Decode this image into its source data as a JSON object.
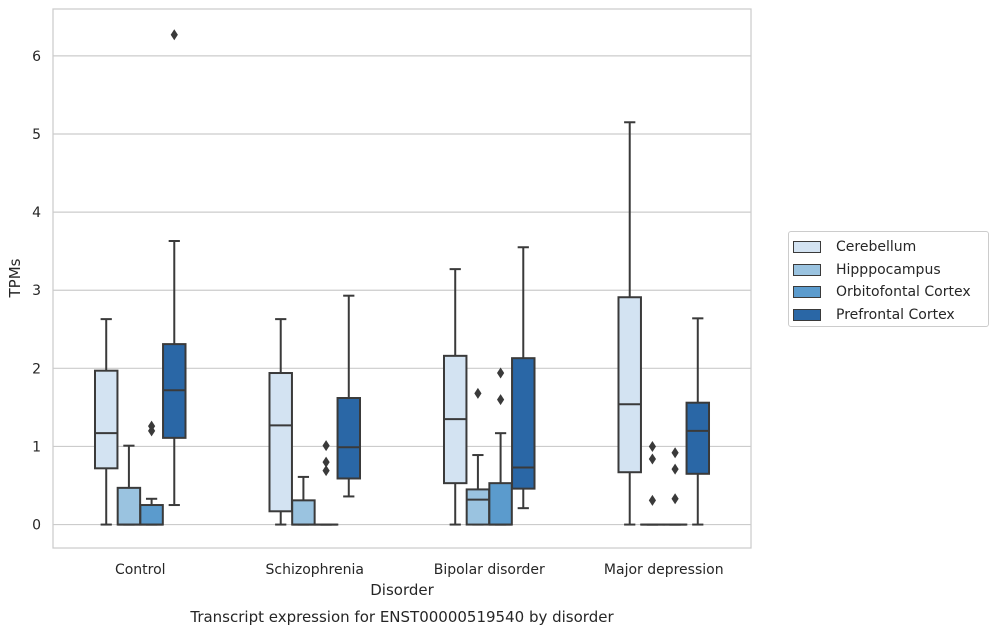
{
  "chart_data": {
    "type": "boxplot",
    "caption": "Transcript expression for ENST00000519540 by disorder",
    "xlabel": "Disorder",
    "ylabel": "TPMs",
    "ylim": [
      -0.3,
      6.6
    ],
    "yticks": [
      0,
      1,
      2,
      3,
      4,
      5,
      6
    ],
    "grid": "horizontal",
    "legend_position": "right",
    "categories": [
      "Control",
      "Schizophrenia",
      "Bipolar disorder",
      "Major depression"
    ],
    "series": [
      {
        "name": "Cerebellum",
        "color": "#d3e3f2",
        "boxes": [
          {
            "whislo": 0.0,
            "q1": 0.72,
            "med": 1.17,
            "q3": 1.97,
            "whishi": 2.63,
            "fliers": []
          },
          {
            "whislo": 0.0,
            "q1": 0.17,
            "med": 1.27,
            "q3": 1.94,
            "whishi": 2.63,
            "fliers": []
          },
          {
            "whislo": 0.0,
            "q1": 0.53,
            "med": 1.35,
            "q3": 2.16,
            "whishi": 3.27,
            "fliers": []
          },
          {
            "whislo": 0.0,
            "q1": 0.67,
            "med": 1.54,
            "q3": 2.91,
            "whishi": 5.15,
            "fliers": []
          }
        ]
      },
      {
        "name": "Hipppocampus",
        "color": "#9ac3e0",
        "boxes": [
          {
            "whislo": 0.0,
            "q1": 0.0,
            "med": 0.0,
            "q3": 0.47,
            "whishi": 1.01,
            "fliers": []
          },
          {
            "whislo": 0.0,
            "q1": 0.0,
            "med": 0.0,
            "q3": 0.31,
            "whishi": 0.61,
            "fliers": []
          },
          {
            "whislo": 0.0,
            "q1": 0.0,
            "med": 0.32,
            "q3": 0.45,
            "whishi": 0.89,
            "fliers": [
              1.68
            ]
          },
          {
            "whislo": 0.0,
            "q1": 0.0,
            "med": 0.0,
            "q3": 0.0,
            "whishi": 0.0,
            "fliers": [
              0.31,
              0.84,
              1.0
            ]
          }
        ]
      },
      {
        "name": "Orbitofontal Cortex",
        "color": "#5b9bcd",
        "boxes": [
          {
            "whislo": 0.0,
            "q1": 0.0,
            "med": 0.0,
            "q3": 0.25,
            "whishi": 0.33,
            "fliers": [
              1.2,
              1.26
            ]
          },
          {
            "whislo": 0.0,
            "q1": 0.0,
            "med": 0.0,
            "q3": 0.0,
            "whishi": 0.0,
            "fliers": [
              0.69,
              0.8,
              1.01
            ]
          },
          {
            "whislo": 0.0,
            "q1": 0.0,
            "med": 0.0,
            "q3": 0.53,
            "whishi": 1.17,
            "fliers": [
              1.6,
              1.94
            ]
          },
          {
            "whislo": 0.0,
            "q1": 0.0,
            "med": 0.0,
            "q3": 0.0,
            "whishi": 0.0,
            "fliers": [
              0.33,
              0.71,
              0.92
            ]
          }
        ]
      },
      {
        "name": "Prefrontal Cortex",
        "color": "#2a67a6",
        "boxes": [
          {
            "whislo": 0.25,
            "q1": 1.11,
            "med": 1.72,
            "q3": 2.31,
            "whishi": 3.63,
            "fliers": [
              6.27
            ]
          },
          {
            "whislo": 0.36,
            "q1": 0.59,
            "med": 0.99,
            "q3": 1.62,
            "whishi": 2.93,
            "fliers": []
          },
          {
            "whislo": 0.21,
            "q1": 0.46,
            "med": 0.73,
            "q3": 2.13,
            "whishi": 3.55,
            "fliers": []
          },
          {
            "whislo": 0.0,
            "q1": 0.65,
            "med": 1.2,
            "q3": 1.56,
            "whishi": 2.64,
            "fliers": []
          }
        ]
      }
    ]
  }
}
